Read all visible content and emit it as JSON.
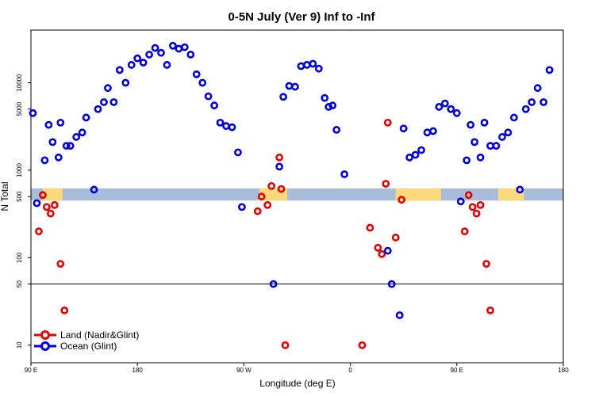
{
  "chart_data": {
    "type": "scatter",
    "title": "0-5N July (Ver 9)   Inf to -Inf",
    "xlabel": "Longitude (deg E)",
    "ylabel": "N Total",
    "xlim": [
      -90,
      180
    ],
    "ylim_log": [
      6.3,
      40000
    ],
    "y_scale": "log",
    "x_ticks": [
      {
        "value": -90,
        "label": "90 E"
      },
      {
        "value": -36,
        "label": "180"
      },
      {
        "value": 18,
        "label": "90 W"
      },
      {
        "value": 72,
        "label": "0"
      },
      {
        "value": 126,
        "label": "90 E"
      },
      {
        "value": 180,
        "label": "180"
      }
    ],
    "y_ticks": [
      {
        "value": 10,
        "label": "10"
      },
      {
        "value": 50,
        "label": "50"
      },
      {
        "value": 100,
        "label": "100"
      },
      {
        "value": 500,
        "label": "500"
      },
      {
        "value": 1000,
        "label": "1000"
      },
      {
        "value": 5000,
        "label": "5000"
      },
      {
        "value": 10000,
        "label": "10000"
      }
    ],
    "reference_line": 50,
    "land_mask_band": {
      "y_range": [
        450,
        620
      ],
      "land_segments": [
        [
          -84,
          -74
        ],
        [
          26,
          40
        ],
        [
          95,
          118
        ],
        [
          147,
          160
        ]
      ],
      "ocean_color": "#a8bcd9",
      "land_color": "#fcd97a"
    },
    "series": [
      {
        "name": "Land (Nadir&Glint)",
        "color": "#e60000",
        "points": [
          [
            -86,
            200
          ],
          [
            -84,
            520
          ],
          [
            -82,
            380
          ],
          [
            -80,
            320
          ],
          [
            -78,
            400
          ],
          [
            -75,
            85
          ],
          [
            -73,
            25
          ],
          [
            25,
            340
          ],
          [
            27,
            500
          ],
          [
            30,
            400
          ],
          [
            32,
            660
          ],
          [
            36,
            1400
          ],
          [
            37,
            610
          ],
          [
            39,
            10
          ],
          [
            78,
            10
          ],
          [
            82,
            220
          ],
          [
            86,
            130
          ],
          [
            88,
            110
          ],
          [
            90,
            700
          ],
          [
            91,
            3500
          ],
          [
            95,
            170
          ],
          [
            98,
            460
          ],
          [
            130,
            200
          ],
          [
            132,
            520
          ],
          [
            134,
            380
          ],
          [
            136,
            320
          ],
          [
            138,
            400
          ],
          [
            141,
            85
          ],
          [
            143,
            25
          ]
        ]
      },
      {
        "name": "Ocean (Glint)",
        "color": "#0000dd",
        "points": [
          [
            -89,
            4500
          ],
          [
            -87,
            420
          ],
          [
            -83,
            1300
          ],
          [
            -81,
            3300
          ],
          [
            -79,
            2100
          ],
          [
            -76,
            1400
          ],
          [
            -75,
            3500
          ],
          [
            -72,
            1900
          ],
          [
            -70,
            1900
          ],
          [
            -67,
            2400
          ],
          [
            -64,
            2700
          ],
          [
            -62,
            4000
          ],
          [
            -58,
            600
          ],
          [
            -56,
            5000
          ],
          [
            -53,
            6000
          ],
          [
            -51,
            8700
          ],
          [
            -48,
            6000
          ],
          [
            -45,
            14000
          ],
          [
            -42,
            10000
          ],
          [
            -39,
            16000
          ],
          [
            -36,
            19000
          ],
          [
            -33,
            17000
          ],
          [
            -30,
            21000
          ],
          [
            -27,
            25000
          ],
          [
            -24,
            22000
          ],
          [
            -21,
            16000
          ],
          [
            -18,
            26500
          ],
          [
            -15,
            24500
          ],
          [
            -12,
            25500
          ],
          [
            -9,
            21000
          ],
          [
            -6,
            12500
          ],
          [
            -3,
            10000
          ],
          [
            0,
            7000
          ],
          [
            3,
            5500
          ],
          [
            6,
            3500
          ],
          [
            9,
            3200
          ],
          [
            12,
            3100
          ],
          [
            15,
            1600
          ],
          [
            17,
            380
          ],
          [
            33,
            50
          ],
          [
            36,
            1100
          ],
          [
            38,
            6900
          ],
          [
            41,
            9200
          ],
          [
            44,
            9000
          ],
          [
            47,
            15500
          ],
          [
            50,
            16000
          ],
          [
            53,
            16500
          ],
          [
            56,
            14500
          ],
          [
            59,
            6700
          ],
          [
            61,
            5300
          ],
          [
            63,
            5500
          ],
          [
            65,
            2900
          ],
          [
            69,
            900
          ],
          [
            91,
            120
          ],
          [
            93,
            50
          ],
          [
            97,
            22
          ],
          [
            99,
            3000
          ],
          [
            102,
            1400
          ],
          [
            105,
            1500
          ],
          [
            108,
            1700
          ],
          [
            111,
            2700
          ],
          [
            114,
            2800
          ],
          [
            117,
            5300
          ],
          [
            120,
            5800
          ],
          [
            123,
            5000
          ],
          [
            126,
            4500
          ],
          [
            128,
            440
          ],
          [
            131,
            1300
          ],
          [
            133,
            3300
          ],
          [
            135,
            2100
          ],
          [
            138,
            1400
          ],
          [
            140,
            3500
          ],
          [
            143,
            1900
          ],
          [
            146,
            1900
          ],
          [
            149,
            2400
          ],
          [
            152,
            2700
          ],
          [
            155,
            4000
          ],
          [
            158,
            600
          ],
          [
            161,
            5000
          ],
          [
            164,
            6000
          ],
          [
            167,
            8700
          ],
          [
            170,
            6000
          ],
          [
            173,
            14000
          ]
        ]
      }
    ],
    "legend": {
      "position": "bottom-left",
      "items": [
        "Land (Nadir&Glint)",
        "Ocean (Glint)"
      ]
    }
  }
}
